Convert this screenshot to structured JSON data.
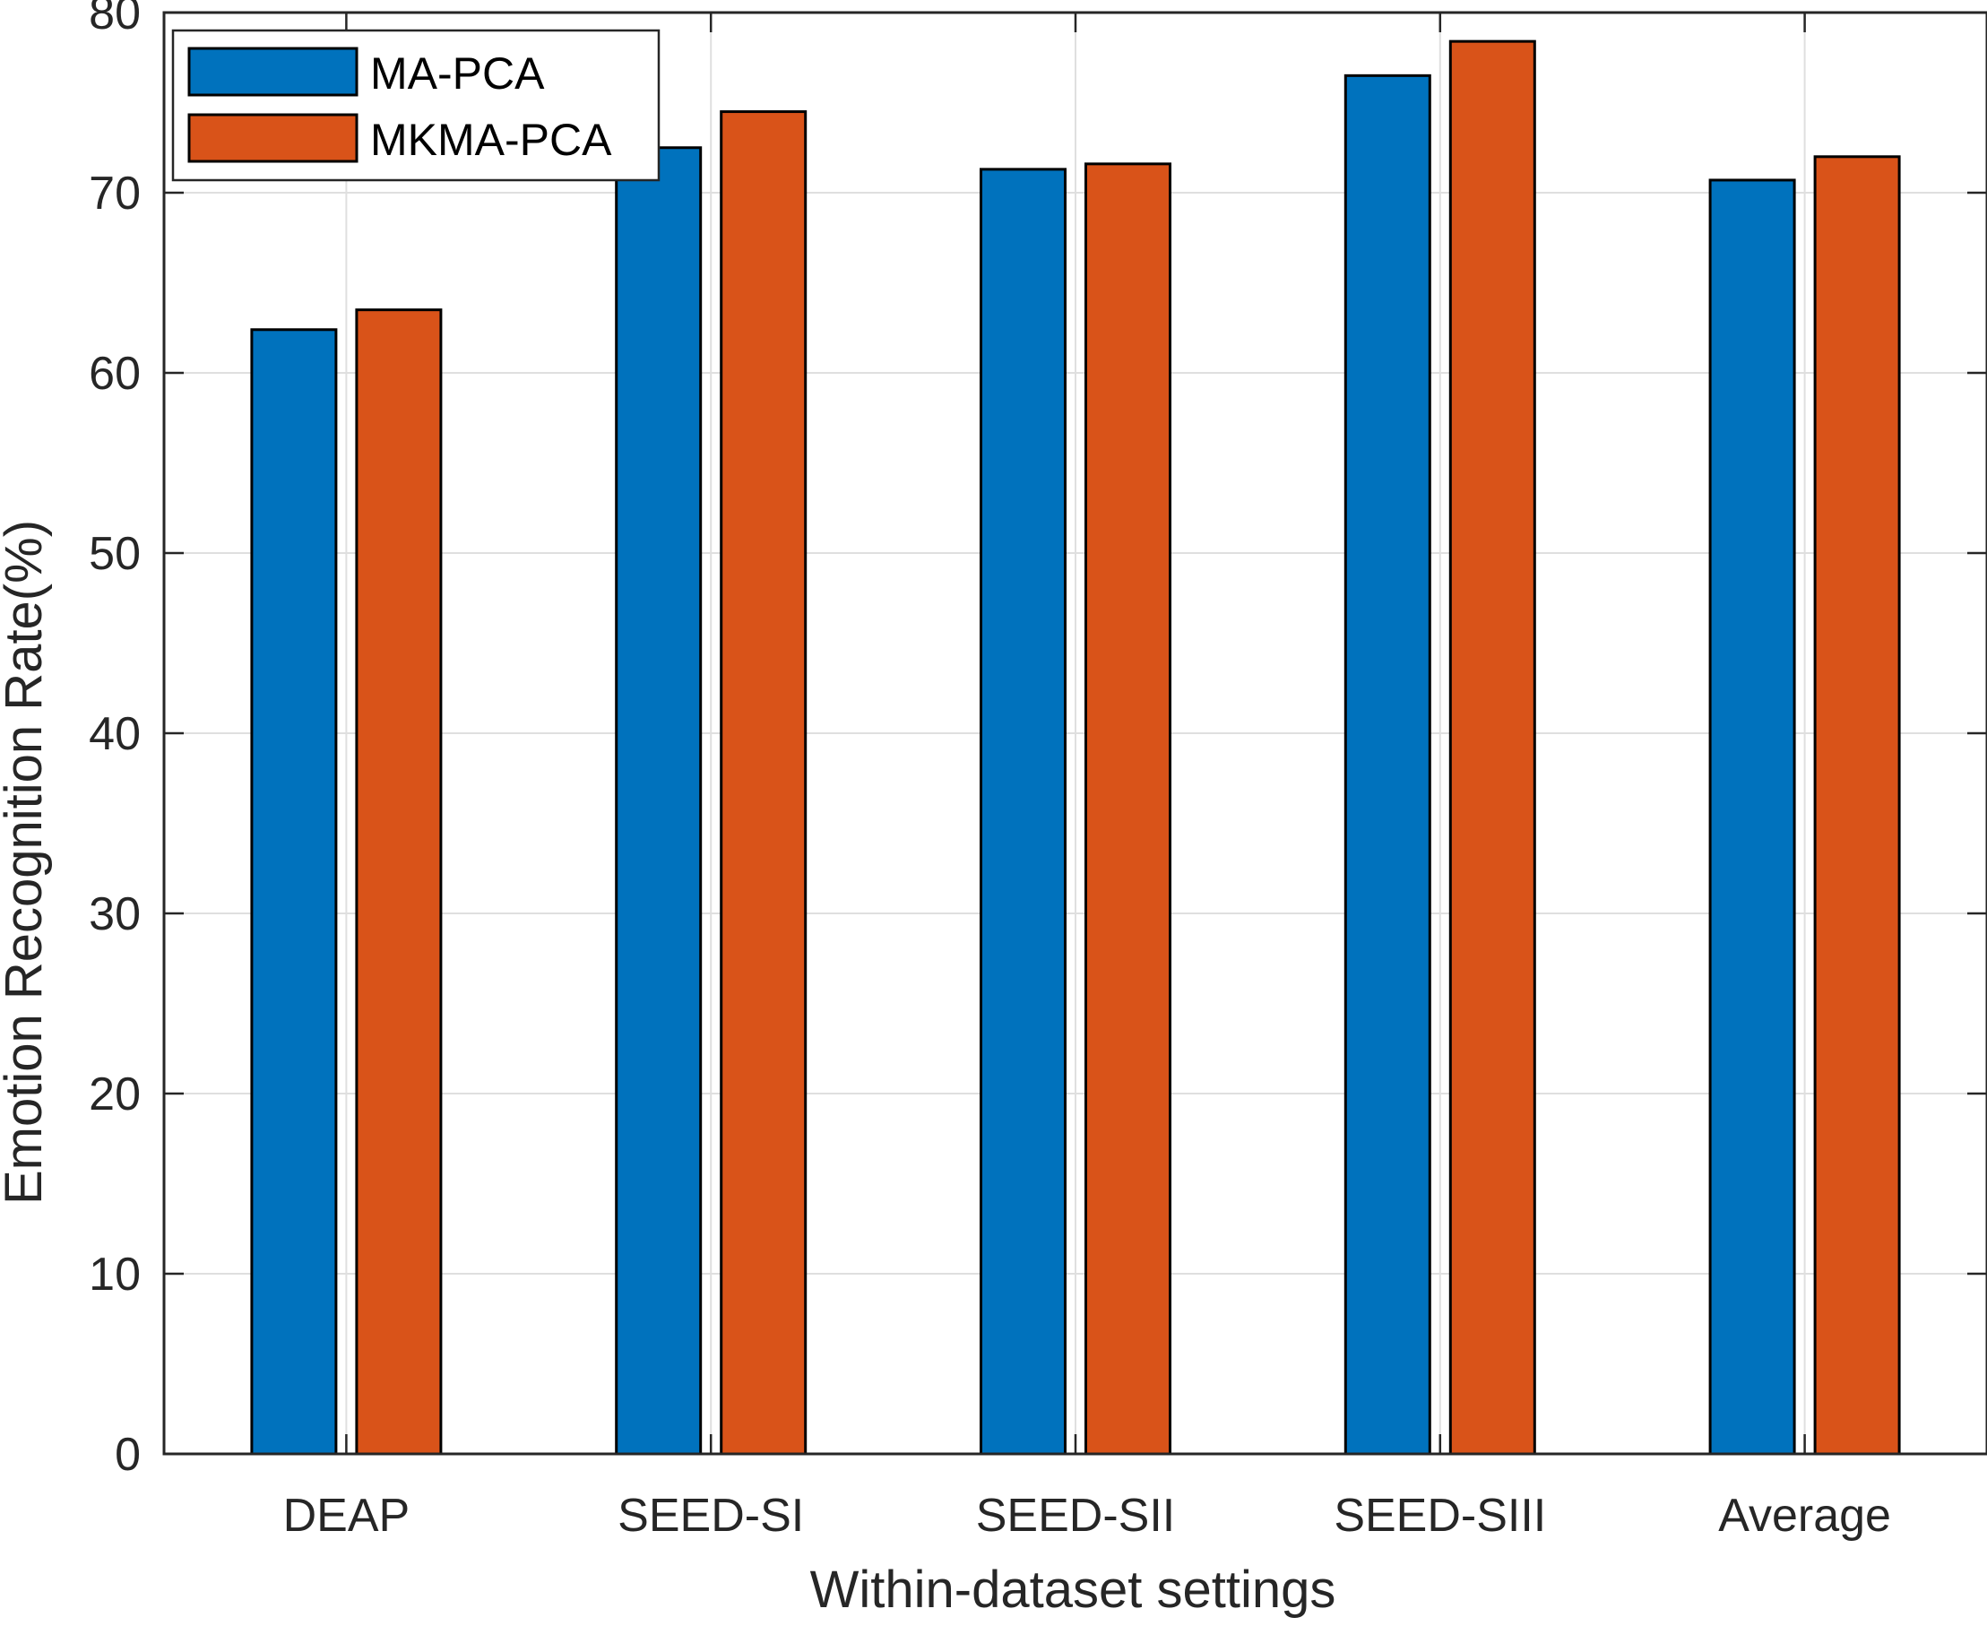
{
  "chart_data": {
    "type": "bar",
    "title": "",
    "xlabel": "Within-dataset settings",
    "ylabel": "Emotion Recognition Rate(%)",
    "categories": [
      "DEAP",
      "SEED-SI",
      "SEED-SII",
      "SEED-SIII",
      "Average"
    ],
    "series": [
      {
        "name": "MA-PCA",
        "color": "#0072BD",
        "values": [
          62.4,
          72.5,
          71.3,
          76.5,
          70.7
        ]
      },
      {
        "name": "MKMA-PCA",
        "color": "#D95319",
        "values": [
          63.5,
          74.5,
          71.6,
          78.4,
          72.0
        ]
      }
    ],
    "ylim": [
      0,
      80
    ],
    "yticks": [
      "0",
      "10",
      "20",
      "30",
      "40",
      "50",
      "60",
      "70",
      "80"
    ],
    "grid": true,
    "legend_position": "top-left"
  }
}
